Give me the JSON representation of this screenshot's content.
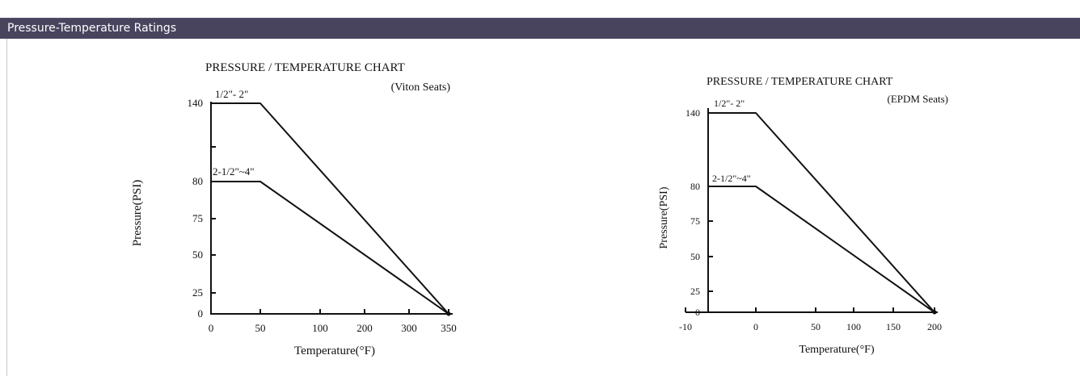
{
  "header": {
    "title": "Pressure-Temperature Ratings"
  },
  "colors": {
    "header_bg": "#49445e",
    "header_text": "#ffffff",
    "chart_ink": "#111111",
    "panel_border": "#c7c7c7"
  },
  "chart_data": [
    {
      "type": "line",
      "title": "PRESSURE / TEMPERATURE CHART",
      "subtitle": "(Viton Seats)",
      "xlabel": "Temperature(°F)",
      "ylabel": "Pressure(PSI)",
      "x_tick_labels": [
        "0",
        "50",
        "100",
        "200",
        "300",
        "350"
      ],
      "y_tick_labels": [
        "0",
        "25",
        "50",
        "75",
        "80",
        "140"
      ],
      "grid": false,
      "series": [
        {
          "name": "1/2\"- 2\"",
          "x": [
            0,
            50,
            350
          ],
          "y": [
            140,
            140,
            0
          ]
        },
        {
          "name": "2-1/2\"~4\"",
          "x": [
            0,
            50,
            350
          ],
          "y": [
            80,
            80,
            0
          ]
        }
      ]
    },
    {
      "type": "line",
      "title": "PRESSURE / TEMPERATURE CHART",
      "subtitle": "(EPDM Seats)",
      "xlabel": "Temperature(°F)",
      "ylabel": "Pressure(PSI)",
      "x_tick_labels": [
        "-10",
        "0",
        "50",
        "100",
        "150",
        "200"
      ],
      "y_tick_labels": [
        "0",
        "25",
        "50",
        "75",
        "80",
        "140"
      ],
      "grid": false,
      "series": [
        {
          "name": "1/2\"- 2\"",
          "x": [
            -10,
            0,
            200
          ],
          "y": [
            140,
            140,
            0
          ]
        },
        {
          "name": "2-1/2\"~4\"",
          "x": [
            -10,
            0,
            200
          ],
          "y": [
            80,
            80,
            0
          ]
        }
      ]
    }
  ]
}
